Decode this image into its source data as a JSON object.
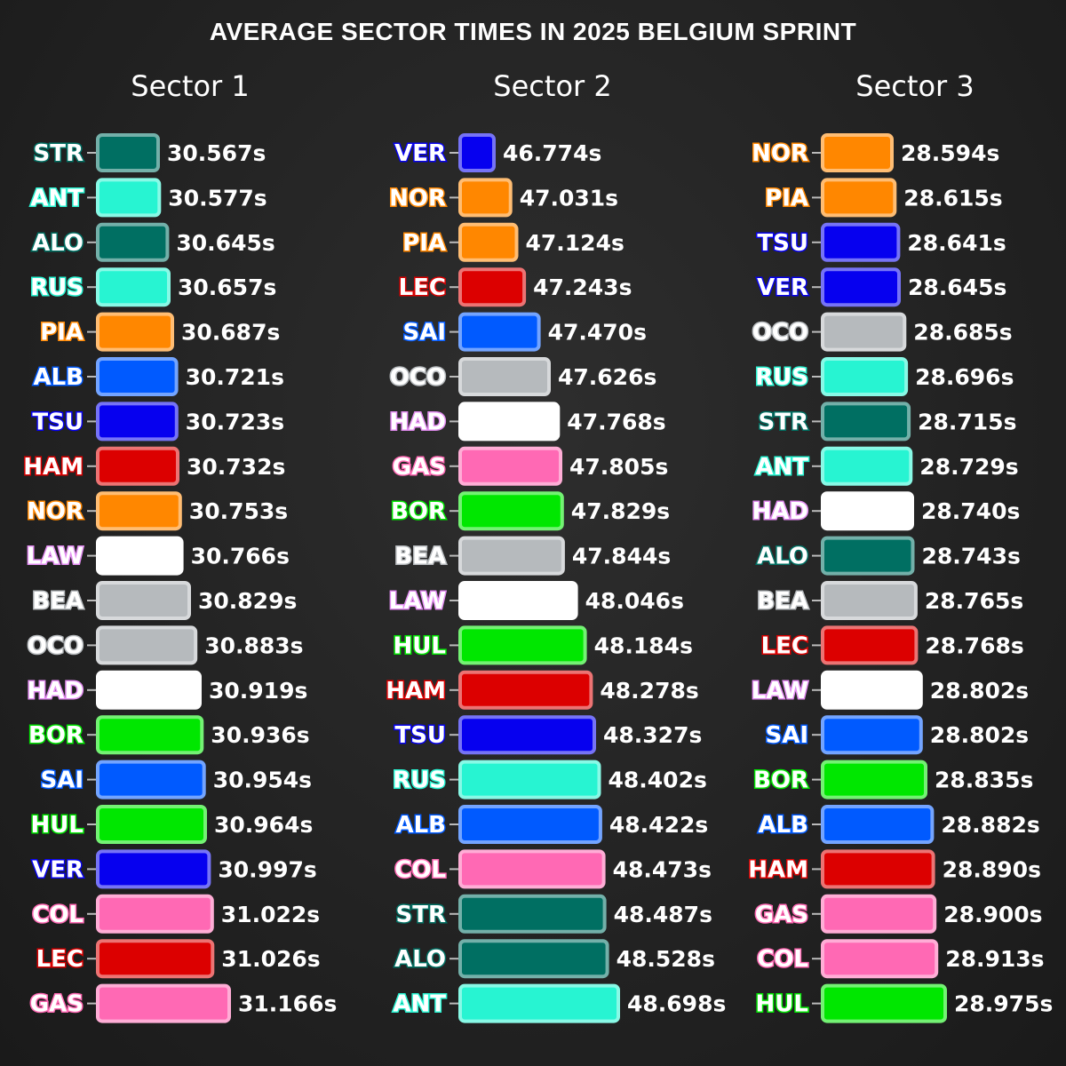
{
  "title": "AVERAGE SECTOR TIMES IN 2025 BELGIUM SPRINT",
  "team_colors": {
    "STR": "#006f62",
    "ALO": "#006f62",
    "ANT": "#27f4d2",
    "RUS": "#27f4d2",
    "PIA": "#ff8700",
    "NOR": "#ff8700",
    "ALB": "#005aff",
    "SAI": "#005aff",
    "TSU": "#0600ef",
    "VER": "#0600ef",
    "HAM": "#dc0000",
    "LEC": "#dc0000",
    "LAW": "#ffffff",
    "HAD": "#ffffff",
    "BEA": "#b6babd",
    "OCO": "#b6babd",
    "BOR": "#00e700",
    "HUL": "#00e700",
    "COL": "#ff69b4",
    "GAS": "#ff69b4"
  },
  "chart_data": [
    {
      "type": "bar",
      "title": "Sector 1",
      "unit": "s",
      "categories": [
        "STR",
        "ANT",
        "ALO",
        "RUS",
        "PIA",
        "ALB",
        "TSU",
        "HAM",
        "NOR",
        "LAW",
        "BEA",
        "OCO",
        "HAD",
        "BOR",
        "SAI",
        "HUL",
        "VER",
        "COL",
        "LEC",
        "GAS"
      ],
      "values": [
        30.567,
        30.577,
        30.645,
        30.657,
        30.687,
        30.721,
        30.723,
        30.732,
        30.753,
        30.766,
        30.829,
        30.883,
        30.919,
        30.936,
        30.954,
        30.964,
        30.997,
        31.022,
        31.026,
        31.166
      ],
      "labels": [
        "30.567s",
        "30.577s",
        "30.645s",
        "30.657s",
        "30.687s",
        "30.721s",
        "30.723s",
        "30.732s",
        "30.753s",
        "30.766s",
        "30.829s",
        "30.883s",
        "30.919s",
        "30.936s",
        "30.954s",
        "30.964s",
        "30.997s",
        "31.022s",
        "31.026s",
        "31.166s"
      ]
    },
    {
      "type": "bar",
      "title": "Sector 2",
      "unit": "s",
      "categories": [
        "VER",
        "NOR",
        "PIA",
        "LEC",
        "SAI",
        "OCO",
        "HAD",
        "GAS",
        "BOR",
        "BEA",
        "LAW",
        "HUL",
        "HAM",
        "TSU",
        "RUS",
        "ALB",
        "COL",
        "STR",
        "ALO",
        "ANT"
      ],
      "values": [
        46.774,
        47.031,
        47.124,
        47.243,
        47.47,
        47.626,
        47.768,
        47.805,
        47.829,
        47.844,
        48.046,
        48.184,
        48.278,
        48.327,
        48.402,
        48.422,
        48.473,
        48.487,
        48.528,
        48.698
      ],
      "labels": [
        "46.774s",
        "47.031s",
        "47.124s",
        "47.243s",
        "47.470s",
        "47.626s",
        "47.768s",
        "47.805s",
        "47.829s",
        "47.844s",
        "48.046s",
        "48.184s",
        "48.278s",
        "48.327s",
        "48.402s",
        "48.422s",
        "48.473s",
        "48.487s",
        "48.528s",
        "48.698s"
      ]
    },
    {
      "type": "bar",
      "title": "Sector 3",
      "unit": "s",
      "categories": [
        "NOR",
        "PIA",
        "TSU",
        "VER",
        "OCO",
        "RUS",
        "STR",
        "ANT",
        "HAD",
        "ALO",
        "BEA",
        "LEC",
        "LAW",
        "SAI",
        "BOR",
        "ALB",
        "HAM",
        "GAS",
        "COL",
        "HUL"
      ],
      "values": [
        28.594,
        28.615,
        28.641,
        28.645,
        28.685,
        28.696,
        28.715,
        28.729,
        28.74,
        28.743,
        28.765,
        28.768,
        28.802,
        28.802,
        28.835,
        28.882,
        28.89,
        28.9,
        28.913,
        28.975
      ],
      "labels": [
        "28.594s",
        "28.615s",
        "28.641s",
        "28.645s",
        "28.685s",
        "28.696s",
        "28.715s",
        "28.729s",
        "28.740s",
        "28.743s",
        "28.765s",
        "28.768s",
        "28.802s",
        "28.802s",
        "28.835s",
        "28.882s",
        "28.890s",
        "28.900s",
        "28.913s",
        "28.975s"
      ]
    }
  ]
}
